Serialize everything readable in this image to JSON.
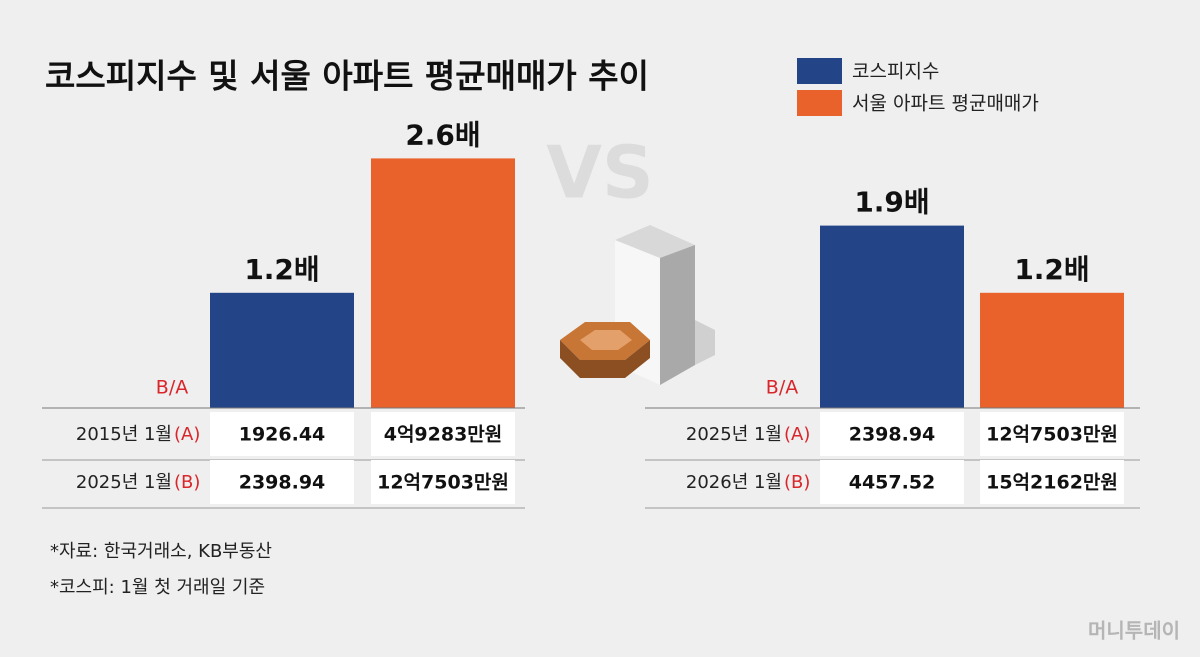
{
  "title": "코스피지수 및 서울 아파트 평균매매가 추이",
  "chart_data": {
    "type": "bar",
    "categories": [
      null,
      null
    ],
    "category_label": "B/A",
    "separator": "VS",
    "series": [
      {
        "name": "코스피지수",
        "color": "#234487",
        "values": [
          1.2,
          1.9
        ],
        "value_labels": [
          "1.2배",
          "1.9배"
        ]
      },
      {
        "name": "서울 아파트 평균매매가",
        "color": "#e9622c",
        "values": [
          2.6,
          1.2
        ],
        "value_labels": [
          "2.6배",
          "1.2배"
        ]
      }
    ]
  },
  "tables": [
    {
      "rows": [
        {
          "label": "2015년 1월",
          "tag": "(A)",
          "cells": [
            "1926.44",
            "4억9283만원"
          ]
        },
        {
          "label": "2025년 1월",
          "tag": "(B)",
          "cells": [
            "2398.94",
            "12억7503만원"
          ]
        }
      ]
    },
    {
      "rows": [
        {
          "label": "2025년 1월",
          "tag": "(A)",
          "cells": [
            "2398.94",
            "12억7503만원"
          ]
        },
        {
          "label": "2026년 1월",
          "tag": "(B)",
          "cells": [
            "4457.52",
            "15억2162만원"
          ]
        }
      ]
    }
  ],
  "notes": [
    "*자료: 한국거래소, KB부동산",
    "*코스피: 1월 첫 거래일 기준"
  ],
  "brand": "머니투데이"
}
